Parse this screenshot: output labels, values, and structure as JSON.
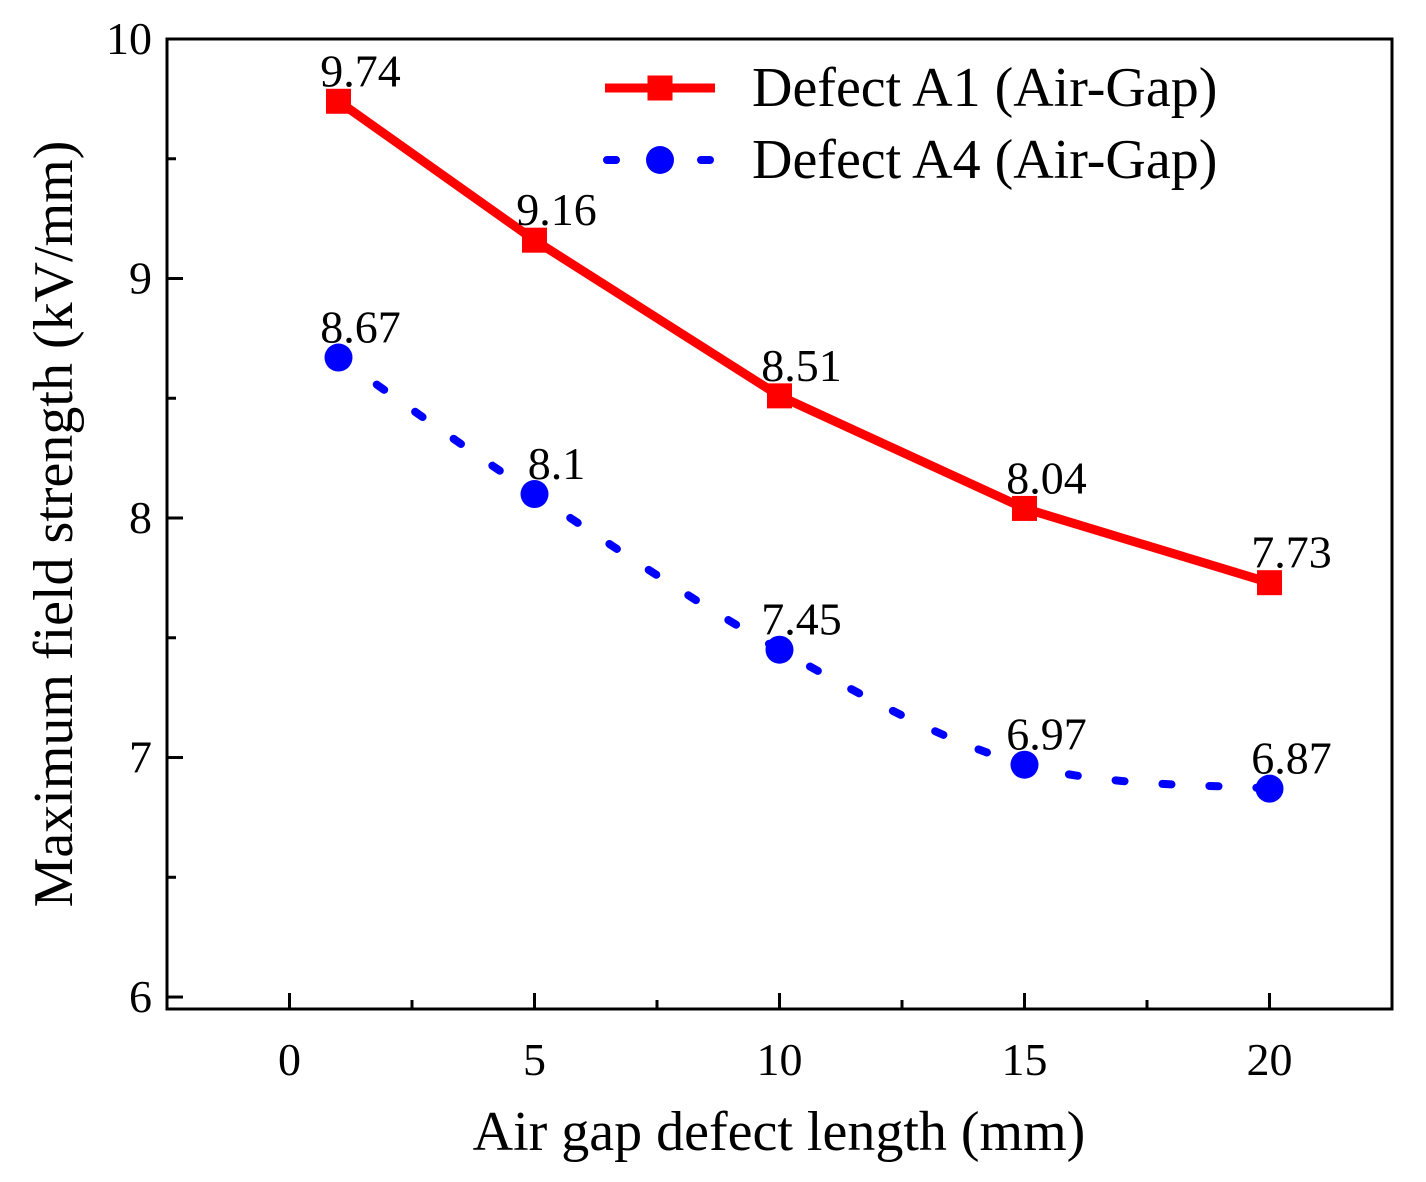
{
  "chart_data": {
    "type": "line",
    "title": "",
    "xlabel": "Air gap defect length (mm)",
    "ylabel": "Maximum field strength (kV/mm)",
    "xlim": [
      -2.5,
      22.5
    ],
    "ylim": [
      5.95,
      10
    ],
    "xticks": [
      0,
      5,
      10,
      15,
      20
    ],
    "xtick_labels": [
      "0",
      "5",
      "10",
      "15",
      "20"
    ],
    "yticks": [
      6,
      7,
      8,
      9,
      10
    ],
    "ytick_labels": [
      "6",
      "7",
      "8",
      "9",
      "10"
    ],
    "grid": false,
    "legend_position": "top-right",
    "series": [
      {
        "name": "Defect A1 (Air-Gap)",
        "color": "#ff0000",
        "line_style": "solid",
        "marker": "square",
        "x": [
          1,
          5,
          10,
          15,
          20
        ],
        "values": [
          9.74,
          9.16,
          8.51,
          8.04,
          7.73
        ],
        "labels": [
          "9.74",
          "9.16",
          "8.51",
          "8.04",
          "7.73"
        ]
      },
      {
        "name": "Defect A4 (Air-Gap)",
        "color": "#0000ff",
        "line_style": "dotted",
        "marker": "circle",
        "x": [
          1,
          5,
          10,
          15,
          20
        ],
        "values": [
          8.67,
          8.1,
          7.45,
          6.97,
          6.87
        ],
        "labels": [
          "8.67",
          "8.1",
          "7.45",
          "6.97",
          "6.87"
        ]
      }
    ]
  }
}
